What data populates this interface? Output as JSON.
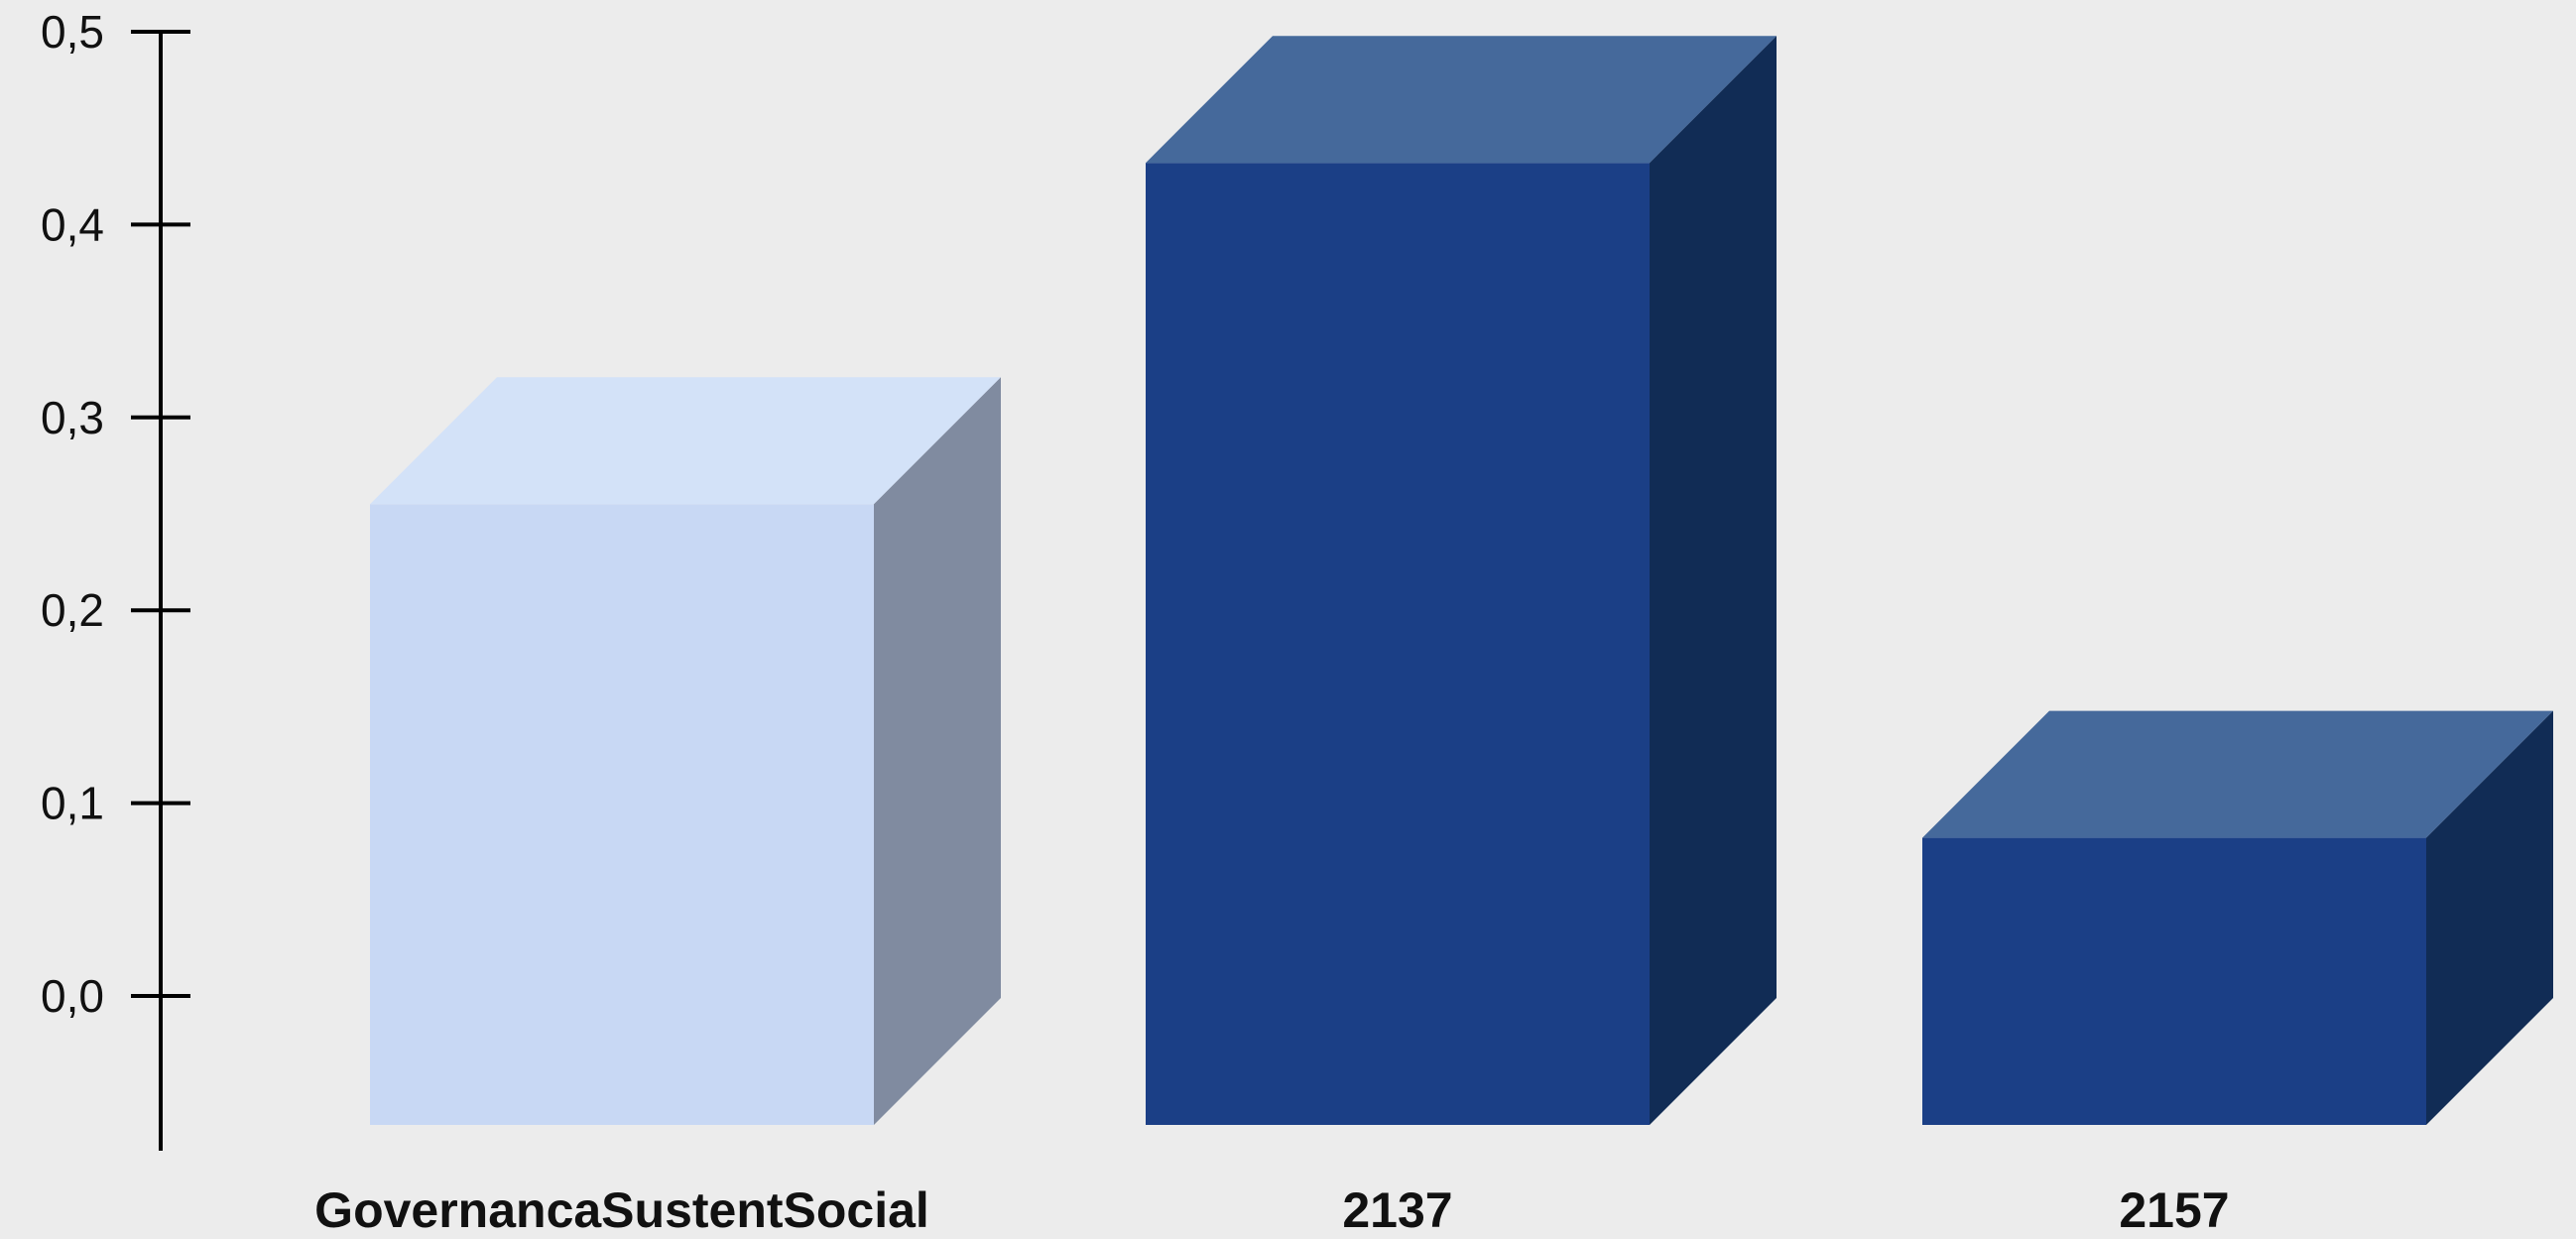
{
  "chart_data": {
    "type": "bar",
    "style": "3d",
    "categories": [
      "GovernancaSustentSocial",
      "2137",
      "2157"
    ],
    "values": [
      0.255,
      0.432,
      0.082
    ],
    "ylim": [
      0.0,
      0.5
    ],
    "yticks": [
      "0,0",
      "0,1",
      "0,2",
      "0,3",
      "0,4",
      "0,5"
    ],
    "grid": false,
    "legend": "none",
    "bar_colors": [
      {
        "front": "#c8d8f4",
        "top": "#d3e2f8",
        "side": "#808ba0"
      },
      {
        "front": "#1b3f86",
        "top": "#45699b",
        "side": "#112c55"
      },
      {
        "front": "#1b3f86",
        "top": "#45699b",
        "side": "#112c55"
      }
    ],
    "axis_color": "#000000",
    "background": "#ececec"
  }
}
